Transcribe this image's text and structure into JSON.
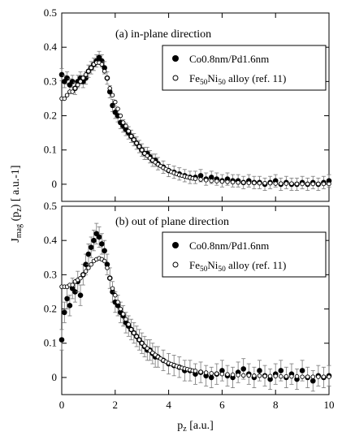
{
  "chart_data": [
    {
      "type": "scatter",
      "panel_label": "(a) in-plane direction",
      "xlabel": "p_z [a.u.]",
      "ylabel": "J_mag (p_z) [ a.u.-1]",
      "xlim": [
        0,
        10
      ],
      "ylim": [
        -0.05,
        0.5
      ],
      "xticks": [
        0,
        2,
        4,
        6,
        8,
        10
      ],
      "yticks": [
        0,
        0.1,
        0.2,
        0.3,
        0.4,
        0.5
      ],
      "ytick_labels": [
        "0",
        "0.1",
        "0.2",
        "0.3",
        "0.4",
        "0.5"
      ],
      "grid": false,
      "legend_position": "top-right",
      "series": [
        {
          "name": "Co0.8nm/Pd1.6nm",
          "marker": "filled-circle",
          "error_bars": true,
          "error": 0.018,
          "x": [
            0.0,
            0.1,
            0.2,
            0.3,
            0.4,
            0.5,
            0.6,
            0.7,
            0.8,
            0.9,
            1.0,
            1.1,
            1.2,
            1.3,
            1.4,
            1.5,
            1.6,
            1.7,
            1.8,
            1.9,
            2.0,
            2.1,
            2.2,
            2.3,
            2.4,
            2.5,
            2.6,
            2.7,
            2.8,
            2.9,
            3.0,
            3.1,
            3.2,
            3.3,
            3.4,
            3.5,
            3.6,
            3.8,
            4.0,
            4.2,
            4.4,
            4.6,
            4.8,
            5.0,
            5.2,
            5.4,
            5.6,
            5.8,
            6.0,
            6.2,
            6.4,
            6.6,
            6.8,
            7.0,
            7.2,
            7.4,
            7.6,
            7.8,
            8.0,
            8.2,
            8.4,
            8.6,
            8.8,
            9.0,
            9.2,
            9.4,
            9.6,
            9.8,
            10.0
          ],
          "y": [
            0.32,
            0.3,
            0.31,
            0.29,
            0.3,
            0.28,
            0.3,
            0.31,
            0.3,
            0.31,
            0.33,
            0.34,
            0.35,
            0.36,
            0.37,
            0.36,
            0.34,
            0.31,
            0.27,
            0.23,
            0.21,
            0.2,
            0.18,
            0.17,
            0.16,
            0.15,
            0.14,
            0.13,
            0.12,
            0.11,
            0.1,
            0.09,
            0.09,
            0.08,
            0.07,
            0.07,
            0.06,
            0.05,
            0.04,
            0.035,
            0.03,
            0.025,
            0.02,
            0.02,
            0.025,
            0.015,
            0.02,
            0.015,
            0.01,
            0.015,
            0.01,
            0.01,
            0.005,
            0.01,
            0.005,
            0.005,
            0.0,
            0.005,
            0.01,
            0.0,
            0.005,
            0.0,
            0.0,
            0.005,
            0.0,
            0.005,
            0.0,
            0.005,
            0.01
          ]
        },
        {
          "name": "Fe50Ni50 alloy (ref. 11)",
          "marker": "open-circle",
          "x": [
            0.0,
            0.1,
            0.2,
            0.3,
            0.4,
            0.5,
            0.6,
            0.7,
            0.8,
            0.9,
            1.0,
            1.1,
            1.2,
            1.3,
            1.4,
            1.5,
            1.6,
            1.7,
            1.8,
            1.9,
            2.0,
            2.1,
            2.2,
            2.3,
            2.4,
            2.5,
            2.6,
            2.7,
            2.8,
            2.9,
            3.0,
            3.1,
            3.2,
            3.3,
            3.4,
            3.5,
            3.6,
            3.7,
            3.8,
            3.9,
            4.0,
            4.1,
            4.2,
            4.3,
            4.4,
            4.5,
            4.6,
            4.7,
            4.8,
            4.9,
            5.0,
            5.2,
            5.4,
            5.6,
            5.8,
            6.0,
            6.2,
            6.4,
            6.6,
            6.8,
            7.0,
            7.2,
            7.4,
            7.6,
            7.8,
            8.0,
            8.2,
            8.4,
            8.6,
            8.8,
            9.0,
            9.2,
            9.4,
            9.6,
            9.8,
            10.0
          ],
          "y": [
            0.25,
            0.25,
            0.26,
            0.27,
            0.27,
            0.28,
            0.29,
            0.3,
            0.31,
            0.32,
            0.33,
            0.34,
            0.35,
            0.355,
            0.355,
            0.35,
            0.33,
            0.31,
            0.28,
            0.26,
            0.24,
            0.22,
            0.2,
            0.18,
            0.17,
            0.155,
            0.14,
            0.13,
            0.12,
            0.11,
            0.1,
            0.09,
            0.083,
            0.076,
            0.07,
            0.064,
            0.058,
            0.053,
            0.048,
            0.044,
            0.04,
            0.036,
            0.033,
            0.03,
            0.027,
            0.025,
            0.023,
            0.021,
            0.019,
            0.017,
            0.016,
            0.014,
            0.012,
            0.01,
            0.009,
            0.008,
            0.007,
            0.006,
            0.005,
            0.005,
            0.004,
            0.004,
            0.003,
            0.003,
            0.003,
            0.002,
            0.002,
            0.002,
            0.002,
            0.001,
            0.001,
            0.001,
            0.001,
            0.001,
            0.001,
            0.001
          ]
        }
      ]
    },
    {
      "type": "scatter",
      "panel_label": "(b) out of plane direction",
      "xlabel": "p_z [a.u.]",
      "ylabel": "J_mag (p_z) [ a.u.-1]",
      "xlim": [
        0,
        10
      ],
      "ylim": [
        -0.05,
        0.5
      ],
      "xticks": [
        0,
        2,
        4,
        6,
        8,
        10
      ],
      "yticks": [
        0,
        0.1,
        0.2,
        0.3,
        0.4,
        0.5
      ],
      "ytick_labels": [
        "0",
        "0.1",
        "0.2",
        "0.3",
        "0.4",
        "0.5"
      ],
      "grid": false,
      "legend_position": "top-right",
      "series": [
        {
          "name": "Co0.8nm/Pd1.6nm",
          "marker": "filled-circle",
          "error_bars": true,
          "error": 0.03,
          "x": [
            0.0,
            0.1,
            0.2,
            0.3,
            0.4,
            0.5,
            0.6,
            0.7,
            0.8,
            0.9,
            1.0,
            1.1,
            1.2,
            1.3,
            1.4,
            1.5,
            1.6,
            1.7,
            1.8,
            1.9,
            2.0,
            2.1,
            2.2,
            2.3,
            2.4,
            2.5,
            2.6,
            2.7,
            2.8,
            2.9,
            3.0,
            3.1,
            3.2,
            3.3,
            3.4,
            3.5,
            3.6,
            3.8,
            4.0,
            4.2,
            4.4,
            4.6,
            4.8,
            5.0,
            5.2,
            5.4,
            5.6,
            5.8,
            6.0,
            6.2,
            6.4,
            6.6,
            6.8,
            7.0,
            7.2,
            7.4,
            7.6,
            7.8,
            8.0,
            8.2,
            8.4,
            8.6,
            8.8,
            9.0,
            9.2,
            9.4,
            9.6,
            9.8,
            10.0
          ],
          "y": [
            0.11,
            0.19,
            0.23,
            0.21,
            0.26,
            0.25,
            0.28,
            0.24,
            0.3,
            0.33,
            0.36,
            0.38,
            0.4,
            0.42,
            0.41,
            0.39,
            0.37,
            0.33,
            0.29,
            0.25,
            0.22,
            0.21,
            0.19,
            0.18,
            0.16,
            0.15,
            0.14,
            0.13,
            0.12,
            0.11,
            0.1,
            0.09,
            0.08,
            0.08,
            0.07,
            0.06,
            0.06,
            0.05,
            0.04,
            0.035,
            0.03,
            0.02,
            0.02,
            0.01,
            0.015,
            0.005,
            0.0,
            0.01,
            0.02,
            0.005,
            0.0,
            0.015,
            0.025,
            0.01,
            0.0,
            0.02,
            0.005,
            -0.005,
            0.01,
            0.02,
            0.0,
            0.01,
            -0.005,
            0.02,
            0.0,
            -0.01,
            0.005,
            0.0,
            0.005
          ]
        },
        {
          "name": "Fe50Ni50 alloy (ref. 11)",
          "marker": "open-circle",
          "x": [
            0.0,
            0.1,
            0.2,
            0.3,
            0.4,
            0.5,
            0.6,
            0.7,
            0.8,
            0.9,
            1.0,
            1.1,
            1.2,
            1.3,
            1.4,
            1.5,
            1.6,
            1.7,
            1.8,
            1.9,
            2.0,
            2.1,
            2.2,
            2.3,
            2.4,
            2.5,
            2.6,
            2.7,
            2.8,
            2.9,
            3.0,
            3.1,
            3.2,
            3.3,
            3.4,
            3.5,
            3.6,
            3.7,
            3.8,
            3.9,
            4.0,
            4.1,
            4.2,
            4.3,
            4.4,
            4.5,
            4.6,
            4.7,
            4.8,
            4.9,
            5.0,
            5.2,
            5.4,
            5.6,
            5.8,
            6.0,
            6.2,
            6.4,
            6.6,
            6.8,
            7.0,
            7.2,
            7.4,
            7.6,
            7.8,
            8.0,
            8.2,
            8.4,
            8.6,
            8.8,
            9.0,
            9.2,
            9.4,
            9.6,
            9.8,
            10.0
          ],
          "y": [
            0.265,
            0.265,
            0.265,
            0.27,
            0.27,
            0.28,
            0.285,
            0.29,
            0.3,
            0.31,
            0.32,
            0.33,
            0.34,
            0.345,
            0.348,
            0.345,
            0.34,
            0.32,
            0.29,
            0.26,
            0.24,
            0.22,
            0.2,
            0.185,
            0.17,
            0.155,
            0.14,
            0.13,
            0.12,
            0.11,
            0.1,
            0.092,
            0.085,
            0.078,
            0.072,
            0.066,
            0.06,
            0.055,
            0.05,
            0.046,
            0.042,
            0.039,
            0.036,
            0.033,
            0.03,
            0.028,
            0.026,
            0.024,
            0.022,
            0.02,
            0.019,
            0.016,
            0.014,
            0.012,
            0.011,
            0.01,
            0.009,
            0.008,
            0.007,
            0.006,
            0.006,
            0.005,
            0.005,
            0.004,
            0.004,
            0.004,
            0.003,
            0.003,
            0.003,
            0.003,
            0.002,
            0.002,
            0.002,
            0.002,
            0.002,
            0.002
          ]
        }
      ]
    }
  ]
}
